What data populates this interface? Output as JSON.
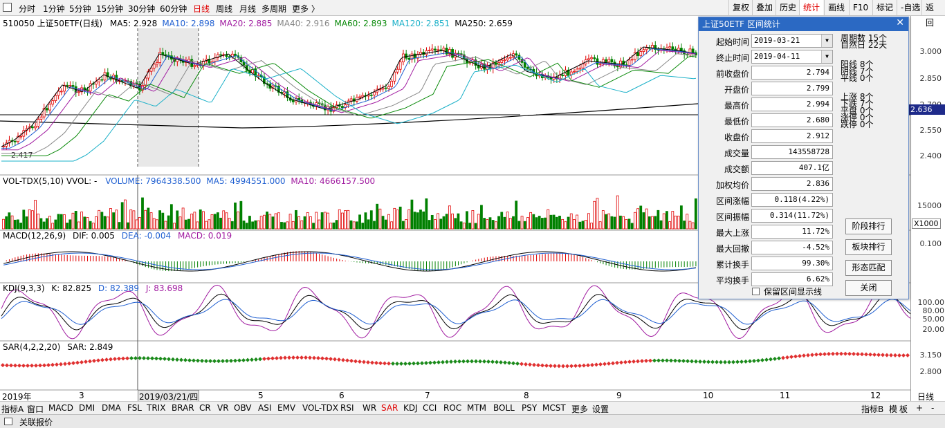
{
  "topbar": {
    "periods": [
      "分时",
      "1分钟",
      "5分钟",
      "15分钟",
      "30分钟",
      "60分钟",
      "日线",
      "周线",
      "月线",
      "多周期",
      "更多 〉"
    ],
    "active_period": "日线",
    "right_buttons": [
      "复权",
      "叠加",
      "历史",
      "统计",
      "画线",
      "F10",
      "标记",
      "-自选",
      "返回"
    ],
    "active_right": "统计"
  },
  "main": {
    "title": "510050 上证50ETF(日线)",
    "ma": [
      {
        "label": "MA5: 2.928",
        "color": "#000000"
      },
      {
        "label": "MA10: 2.898",
        "color": "#1f5fd1"
      },
      {
        "label": "MA20: 2.885",
        "color": "#a01aa0"
      },
      {
        "label": "MA40: 2.916",
        "color": "#888888"
      },
      {
        "label": "MA60: 2.893",
        "color": "#0a8a0a"
      },
      {
        "label": "MA120: 2.851",
        "color": "#1ab0c8"
      },
      {
        "label": "MA250: 2.659",
        "color": "#000000"
      }
    ],
    "price_axis": [
      "3.000",
      "2.850",
      "2.700",
      "2.550",
      "2.400"
    ],
    "low_label": "2.417",
    "current_marker": "2.636"
  },
  "vol": {
    "title": "VOL-TDX(5,10)  VVOL: -",
    "volume": "VOLUME: 7964338.500",
    "ma5": "MA5: 4994551.000",
    "ma10": "MA10: 4666157.500",
    "axis": [
      "15000"
    ],
    "unit": "X1000"
  },
  "macd": {
    "title": "MACD(12,26,9)",
    "dif": "DIF: 0.005",
    "dea": "DEA: -0.004",
    "macd": "MACD: 0.019",
    "axis": [
      "0.100"
    ]
  },
  "kdj": {
    "title": "KDJ(9,3,3)",
    "k": "K: 82.825",
    "d": "D: 82.389",
    "j": "J: 83.698",
    "axis": [
      "100.00",
      "80.00",
      "50.00",
      "20.00"
    ]
  },
  "sar": {
    "title": "SAR(4,2,2,20)",
    "value": "SAR: 2.849",
    "axis": [
      "3.150",
      "2.800"
    ]
  },
  "time_axis": {
    "labels": [
      "2019年",
      "3",
      "4",
      "5",
      "6",
      "7",
      "8",
      "9",
      "10",
      "11",
      "12"
    ],
    "cursor_date": "2019/03/21/四",
    "right_label": "日线"
  },
  "bottombar": {
    "items": [
      "指标A",
      "窗口",
      "MACD",
      "DMI",
      "DMA",
      "FSL",
      "TRIX",
      "BRAR",
      "CR",
      "VR",
      "OBV",
      "ASI",
      "EMV",
      "VOL-TDX",
      "RSI",
      "WR",
      "SAR",
      "KDJ",
      "CCI",
      "ROC",
      "MTM",
      "BOLL",
      "PSY",
      "MCST",
      "更多",
      "设置"
    ],
    "active": "SAR",
    "right": [
      "指标B",
      "模",
      "板",
      "+",
      "-"
    ]
  },
  "statusbar": {
    "label": "关联报价"
  },
  "dialog": {
    "title": "上证50ETF 区间统计",
    "start_label": "起始时间",
    "start_value": "2019-03-21",
    "end_label": "终止时间",
    "end_value": "2019-04-11",
    "rows": [
      {
        "label": "前收盘价",
        "value": "2.794"
      },
      {
        "label": "开盘价",
        "value": "2.799"
      },
      {
        "label": "最高价",
        "value": "2.994"
      },
      {
        "label": "最低价",
        "value": "2.680"
      },
      {
        "label": "收盘价",
        "value": "2.912"
      },
      {
        "label": "成交量",
        "value": "143558728"
      },
      {
        "label": "成交额",
        "value": "407.1亿"
      },
      {
        "label": "加权均价",
        "value": "2.836"
      },
      {
        "label": "区间涨幅",
        "value": "0.118(4.22%)"
      },
      {
        "label": "区间振幅",
        "value": "0.314(11.72%)"
      },
      {
        "label": "最大上涨",
        "value": "11.72%"
      },
      {
        "label": "最大回撤",
        "value": "-4.52%"
      },
      {
        "label": "累计换手",
        "value": "99.30%"
      },
      {
        "label": "平均换手",
        "value": "6.62%"
      }
    ],
    "stats_a": [
      "周期数  15个",
      "自然日  22天"
    ],
    "stats_b": [
      "阳线  8个",
      "阴线  7个",
      "平线  0个"
    ],
    "stats_c": [
      "上涨  8个",
      "下跌  7个",
      "平盘  0个",
      "涨停  0个",
      "跌停  0个"
    ],
    "buttons": [
      "阶段排行",
      "板块排行",
      "形态匹配",
      "关闭"
    ],
    "checkbox_label": "保留区间显示线"
  }
}
